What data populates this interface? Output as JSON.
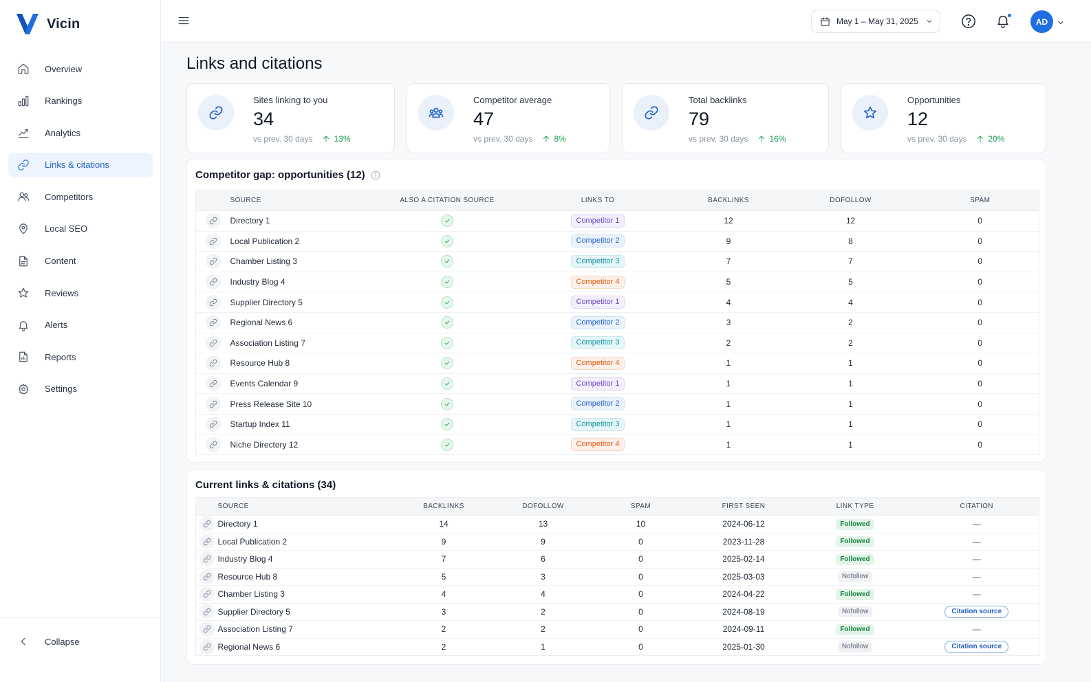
{
  "brand": {
    "name": "Vicin"
  },
  "sidebar": {
    "items": [
      {
        "label": "Overview",
        "icon": "home-icon",
        "active": false
      },
      {
        "label": "Rankings",
        "icon": "bar-chart-icon",
        "active": false
      },
      {
        "label": "Analytics",
        "icon": "analytics-icon",
        "active": false
      },
      {
        "label": "Links & citations",
        "icon": "link-icon",
        "active": true
      },
      {
        "label": "Competitors",
        "icon": "users-icon",
        "active": false
      },
      {
        "label": "Local SEO",
        "icon": "map-pin-icon",
        "active": false
      },
      {
        "label": "Content",
        "icon": "document-icon",
        "active": false
      },
      {
        "label": "Reviews",
        "icon": "star-icon",
        "active": false
      },
      {
        "label": "Alerts",
        "icon": "bell-icon",
        "active": false
      },
      {
        "label": "Reports",
        "icon": "report-icon",
        "active": false
      },
      {
        "label": "Settings",
        "icon": "gear-icon",
        "active": false
      }
    ],
    "collapse_label": "Collapse"
  },
  "header": {
    "date_range": "May 1 – May 31, 2025",
    "avatar_initials": "AD"
  },
  "page": {
    "title": "Links and citations"
  },
  "kpis": [
    {
      "label": "Sites linking to you",
      "value": "34",
      "sub": "vs prev. 30 days",
      "delta": "13%",
      "icon": "link-icon"
    },
    {
      "label": "Competitor average",
      "value": "47",
      "sub": "vs prev. 30 days",
      "delta": "8%",
      "icon": "users-icon"
    },
    {
      "label": "Total backlinks",
      "value": "79",
      "sub": "vs prev. 30 days",
      "delta": "16%",
      "icon": "link-icon"
    },
    {
      "label": "Opportunities",
      "value": "12",
      "sub": "vs prev. 30 days",
      "delta": "20%",
      "icon": "star-icon"
    }
  ],
  "gap": {
    "title": "Competitor gap: opportunities (12)",
    "columns": [
      "Source",
      "Also a citation source",
      "Links to",
      "Backlinks",
      "Dofollow",
      "Spam"
    ],
    "rows": [
      {
        "source": "Directory 1",
        "links_to": "Competitor 1",
        "backlinks": "12",
        "dofollow": "12",
        "spam": "0"
      },
      {
        "source": "Local Publication 2",
        "links_to": "Competitor 2",
        "backlinks": "9",
        "dofollow": "8",
        "spam": "0"
      },
      {
        "source": "Chamber Listing 3",
        "links_to": "Competitor 3",
        "backlinks": "7",
        "dofollow": "7",
        "spam": "0"
      },
      {
        "source": "Industry Blog 4",
        "links_to": "Competitor 4",
        "backlinks": "5",
        "dofollow": "5",
        "spam": "0"
      },
      {
        "source": "Supplier Directory 5",
        "links_to": "Competitor 1",
        "backlinks": "4",
        "dofollow": "4",
        "spam": "0"
      },
      {
        "source": "Regional News 6",
        "links_to": "Competitor 2",
        "backlinks": "3",
        "dofollow": "2",
        "spam": "0"
      },
      {
        "source": "Association Listing 7",
        "links_to": "Competitor 3",
        "backlinks": "2",
        "dofollow": "2",
        "spam": "0"
      },
      {
        "source": "Resource Hub 8",
        "links_to": "Competitor 4",
        "backlinks": "1",
        "dofollow": "1",
        "spam": "0"
      },
      {
        "source": "Events Calendar 9",
        "links_to": "Competitor 1",
        "backlinks": "1",
        "dofollow": "1",
        "spam": "0"
      },
      {
        "source": "Press Release Site 10",
        "links_to": "Competitor 2",
        "backlinks": "1",
        "dofollow": "1",
        "spam": "0"
      },
      {
        "source": "Startup Index 11",
        "links_to": "Competitor 3",
        "backlinks": "1",
        "dofollow": "1",
        "spam": "0"
      },
      {
        "source": "Niche Directory 12",
        "links_to": "Competitor 4",
        "backlinks": "1",
        "dofollow": "1",
        "spam": "0"
      }
    ]
  },
  "current": {
    "title": "Current links & citations (34)",
    "columns": [
      "Source",
      "Backlinks",
      "Dofollow",
      "Spam",
      "First seen",
      "Link type",
      "Citation"
    ],
    "rows": [
      {
        "source": "Directory 1",
        "backlinks": "14",
        "dofollow": "13",
        "spam": "10",
        "first_seen": "2024-06-12",
        "link_type": "Followed",
        "citation": "—"
      },
      {
        "source": "Local Publication 2",
        "backlinks": "9",
        "dofollow": "9",
        "spam": "0",
        "first_seen": "2023-11-28",
        "link_type": "Followed",
        "citation": "—"
      },
      {
        "source": "Industry Blog 4",
        "backlinks": "7",
        "dofollow": "6",
        "spam": "0",
        "first_seen": "2025-02-14",
        "link_type": "Followed",
        "citation": "—"
      },
      {
        "source": "Resource Hub 8",
        "backlinks": "5",
        "dofollow": "3",
        "spam": "0",
        "first_seen": "2025-03-03",
        "link_type": "Nofollow",
        "citation": "—"
      },
      {
        "source": "Chamber Listing 3",
        "backlinks": "4",
        "dofollow": "4",
        "spam": "0",
        "first_seen": "2024-04-22",
        "link_type": "Followed",
        "citation": "—"
      },
      {
        "source": "Supplier Directory 5",
        "backlinks": "3",
        "dofollow": "2",
        "spam": "0",
        "first_seen": "2024-08-19",
        "link_type": "Nofollow",
        "citation": "Citation source"
      },
      {
        "source": "Association Listing 7",
        "backlinks": "2",
        "dofollow": "2",
        "spam": "0",
        "first_seen": "2024-09-11",
        "link_type": "Followed",
        "citation": "—"
      },
      {
        "source": "Regional News 6",
        "backlinks": "2",
        "dofollow": "1",
        "spam": "0",
        "first_seen": "2025-01-30",
        "link_type": "Nofollow",
        "citation": "Citation source"
      }
    ]
  }
}
